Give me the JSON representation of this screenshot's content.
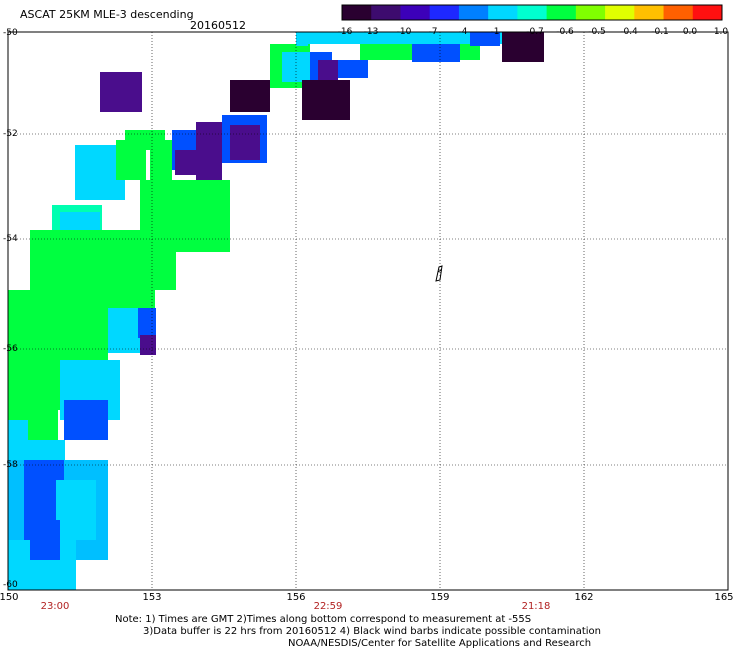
{
  "header": {
    "title": "ASCAT 25KM MLE-3 descending",
    "date": "20160512"
  },
  "colorbar": {
    "labels": [
      "-16",
      "-13",
      "-10",
      "-7",
      "-4",
      "-1",
      "-0.7",
      "-0.6",
      "-0.5",
      "-0.4",
      "-0.1",
      "0.0",
      "1.0"
    ],
    "colors": [
      "#2a0030",
      "#3d0b6e",
      "#3c00b9",
      "#1e28ff",
      "#0080ff",
      "#00d8ff",
      "#00ffd0",
      "#00ff40",
      "#80ff00",
      "#e0ff00",
      "#ffc000",
      "#ff6000",
      "#ff1010"
    ]
  },
  "axes": {
    "lat_labels": [
      "-50",
      "-52",
      "-54",
      "-56",
      "-58",
      "-60"
    ],
    "lon_labels": [
      "150",
      "153",
      "156",
      "159",
      "162",
      "165"
    ],
    "time_labels": [
      "23:00",
      "22:59",
      "21:18"
    ]
  },
  "notes": {
    "line1": "Note: 1) Times are GMT 2)Times along bottom correspond to measurement at -55S",
    "line2": "3)Data buffer is 22 hrs from 20160512 4) Black wind barbs indicate possible contamination",
    "line3": "NOAA/NESDIS/Center for Satellite Applications and Research"
  },
  "swath_colors": {
    "green": "#00ff40",
    "cyan": "#00d8ff",
    "lightblue": "#00bfff",
    "blue": "#0050ff",
    "purple": "#4a0d8c",
    "dark": "#2a0030",
    "teal": "#00ffb0"
  }
}
